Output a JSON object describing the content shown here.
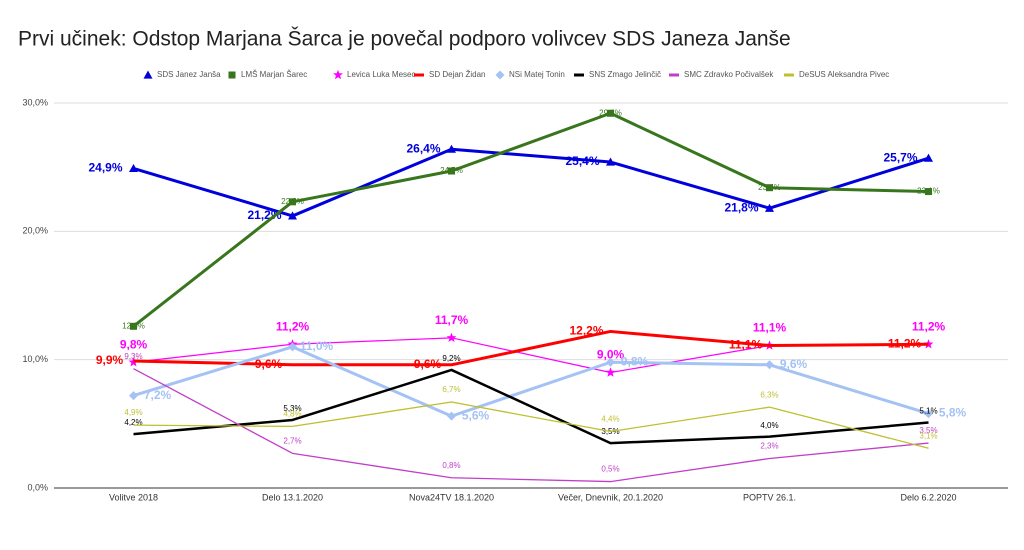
{
  "chart_data": {
    "type": "line",
    "title": "Prvi učinek: Odstop Marjana Šarca je povečal podporo volivcev SDS Janeza Janše",
    "categories": [
      "Volitve 2018",
      "Delo 13.1.2020",
      "Nova24TV 18.1.2020",
      "Večer, Dnevnik, 20.1.2020",
      "POPTV 26.1.",
      "Delo 6.2.2020"
    ],
    "ylim": [
      0,
      30
    ],
    "yticks": [
      {
        "value": 0,
        "label": "0,0%"
      },
      {
        "value": 10,
        "label": "10,0%"
      },
      {
        "value": 20,
        "label": "20,0%"
      },
      {
        "value": 30,
        "label": "30,0%"
      }
    ],
    "grid": true,
    "legend": "top",
    "series": [
      {
        "name": "SDS Janez Janša",
        "color": "#0000dd",
        "values": [
          24.9,
          21.2,
          26.4,
          25.4,
          21.8,
          25.7
        ],
        "value_labels": [
          "24,9%",
          "21,2%",
          "26,4%",
          "25,4%",
          "21,8%",
          "25,7%"
        ]
      },
      {
        "name": "LMŠ Marjan Šarec",
        "color": "#38761d",
        "values": [
          12.6,
          22.3,
          24.7,
          29.2,
          23.4,
          23.1
        ],
        "value_labels": [
          "12,6%",
          "22,3%",
          "24,7%",
          "29,2%",
          "23,4%",
          "23,1%"
        ]
      },
      {
        "name": "Levica Luka Mesec",
        "color": "#ff00ff",
        "values": [
          9.8,
          11.2,
          11.7,
          9.0,
          11.1,
          11.2
        ],
        "value_labels": [
          "9,8%",
          "11,2%",
          "11,7%",
          "9,0%",
          "11,1%",
          "11,2%"
        ]
      },
      {
        "name": "SD Dejan Židan",
        "color": "#ff0000",
        "values": [
          9.9,
          9.6,
          9.6,
          12.2,
          11.1,
          11.2
        ],
        "value_labels": [
          "9,9%",
          "9,6%",
          "9,6%",
          "12,2%",
          "11,1%",
          "11,2%"
        ]
      },
      {
        "name": "NSi Matej Tonin",
        "color": "#a4c2f4",
        "values": [
          7.2,
          11.0,
          5.6,
          9.8,
          9.6,
          5.8
        ],
        "value_labels": [
          "7,2%",
          "11,0%",
          "5,6%",
          "9,8%",
          "9,6%",
          "5,8%"
        ]
      },
      {
        "name": "SNS Zmago Jelinčič",
        "color": "#000000",
        "values": [
          4.2,
          5.3,
          9.2,
          3.5,
          4.0,
          5.1
        ],
        "value_labels": [
          "4,2%",
          "5,3%",
          "9,2%",
          "3,5%",
          "4,0%",
          "5,1%"
        ]
      },
      {
        "name": "SMC Zdravko Počivalšek",
        "color": "#c03fc8",
        "values": [
          9.3,
          2.7,
          0.8,
          0.5,
          2.3,
          3.5
        ],
        "value_labels": [
          "9,3%",
          "2,7%",
          "0,8%",
          "0,5%",
          "2,3%",
          "3,5%"
        ]
      },
      {
        "name": "DeSUS Aleksandra Pivec",
        "color": "#bfbf30",
        "values": [
          4.9,
          4.8,
          6.7,
          4.4,
          6.3,
          3.1
        ],
        "value_labels": [
          "4,9%",
          "4,8%",
          "6,7%",
          "4,4%",
          "6,3%",
          "3,1%"
        ]
      }
    ]
  }
}
